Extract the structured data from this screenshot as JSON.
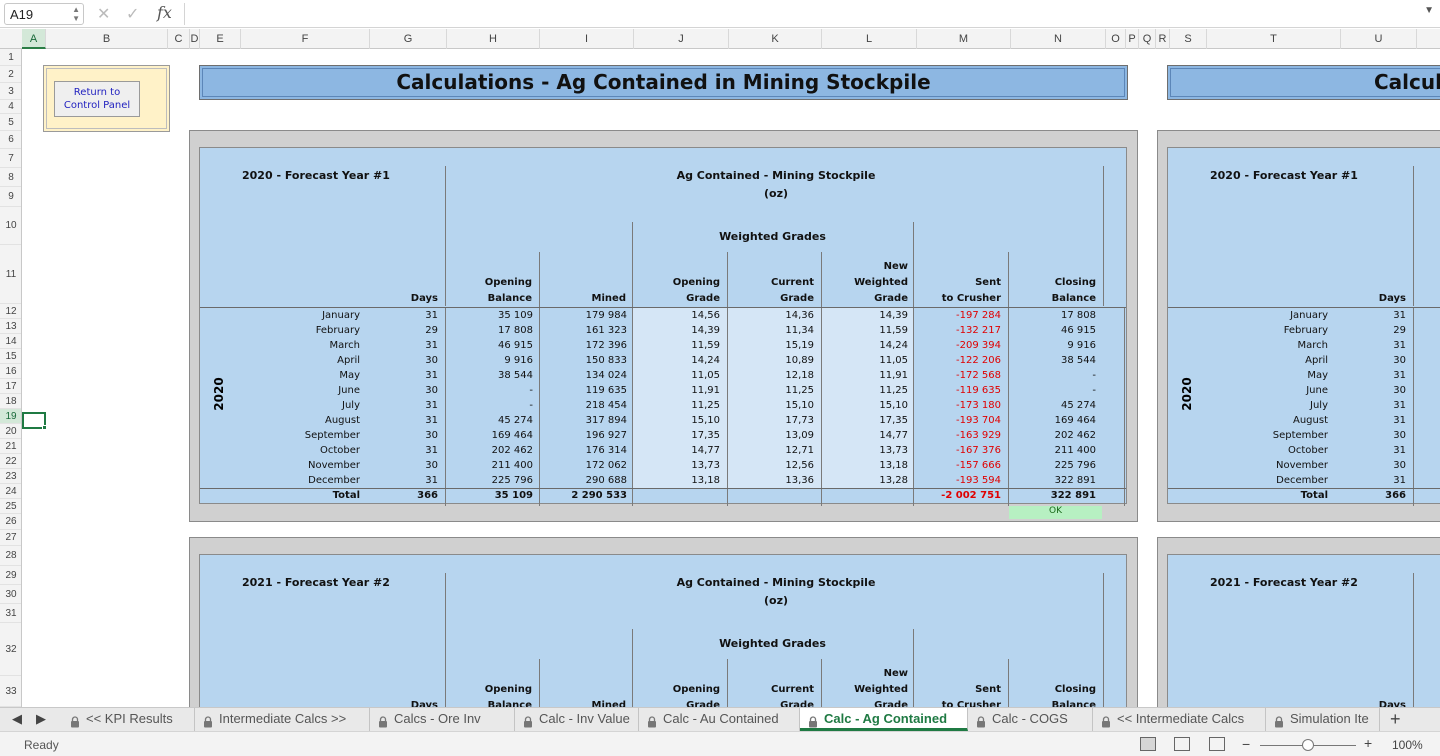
{
  "formula_bar": {
    "name_box": "A19",
    "fx": "fx",
    "formula": ""
  },
  "columns": [
    "A",
    "B",
    "C",
    "D",
    "E",
    "F",
    "G",
    "H",
    "I",
    "J",
    "K",
    "L",
    "M",
    "N",
    "O",
    "P",
    "Q",
    "R",
    "S",
    "T",
    "U"
  ],
  "selected_column": "A",
  "rows": [
    "1",
    "2",
    "3",
    "4",
    "5",
    "6",
    "7",
    "8",
    "9",
    "10",
    "11",
    "12",
    "13",
    "14",
    "15",
    "16",
    "17",
    "18",
    "19",
    "20",
    "21",
    "22",
    "23",
    "24",
    "25",
    "26",
    "27",
    "28",
    "29",
    "30",
    "31",
    "32",
    "33"
  ],
  "selected_row": "19",
  "control_button": "Return to Control Panel",
  "title": "Calculations - Ag Contained  in Mining Stockpile",
  "title_right": "Calcula",
  "table2020": {
    "year_heading": "2020 - Forecast Year #1",
    "group_title": "Ag Contained - Mining Stockpile",
    "group_unit": "(oz)",
    "weighted_grades": "Weighted Grades",
    "year_label": "2020",
    "headers": {
      "days": "Days",
      "opening_balance_1": "Opening",
      "opening_balance_2": "Balance",
      "mined": "Mined",
      "opening_grade_1": "Opening",
      "opening_grade_2": "Grade",
      "current_grade_1": "Current",
      "current_grade_2": "Grade",
      "new_grade_1": "New",
      "new_grade_2": "Weighted",
      "new_grade_3": "Grade",
      "sent_1": "Sent",
      "sent_2": "to Crusher",
      "closing_1": "Closing",
      "closing_2": "Balance"
    },
    "rows": [
      {
        "month": "January",
        "days": "31",
        "opening": "35 109",
        "mined": "179 984",
        "og": "14,56",
        "cg": "14,36",
        "ng": "14,39",
        "sent": "-197 284",
        "closing": "17 808"
      },
      {
        "month": "February",
        "days": "29",
        "opening": "17 808",
        "mined": "161 323",
        "og": "14,39",
        "cg": "11,34",
        "ng": "11,59",
        "sent": "-132 217",
        "closing": "46 915"
      },
      {
        "month": "March",
        "days": "31",
        "opening": "46 915",
        "mined": "172 396",
        "og": "11,59",
        "cg": "15,19",
        "ng": "14,24",
        "sent": "-209 394",
        "closing": "9 916"
      },
      {
        "month": "April",
        "days": "30",
        "opening": "9 916",
        "mined": "150 833",
        "og": "14,24",
        "cg": "10,89",
        "ng": "11,05",
        "sent": "-122 206",
        "closing": "38 544"
      },
      {
        "month": "May",
        "days": "31",
        "opening": "38 544",
        "mined": "134 024",
        "og": "11,05",
        "cg": "12,18",
        "ng": "11,91",
        "sent": "-172 568",
        "closing": "-"
      },
      {
        "month": "June",
        "days": "30",
        "opening": "-",
        "mined": "119 635",
        "og": "11,91",
        "cg": "11,25",
        "ng": "11,25",
        "sent": "-119 635",
        "closing": "-"
      },
      {
        "month": "July",
        "days": "31",
        "opening": "-",
        "mined": "218 454",
        "og": "11,25",
        "cg": "15,10",
        "ng": "15,10",
        "sent": "-173 180",
        "closing": "45 274"
      },
      {
        "month": "August",
        "days": "31",
        "opening": "45 274",
        "mined": "317 894",
        "og": "15,10",
        "cg": "17,73",
        "ng": "17,35",
        "sent": "-193 704",
        "closing": "169 464"
      },
      {
        "month": "September",
        "days": "30",
        "opening": "169 464",
        "mined": "196 927",
        "og": "17,35",
        "cg": "13,09",
        "ng": "14,77",
        "sent": "-163 929",
        "closing": "202 462"
      },
      {
        "month": "October",
        "days": "31",
        "opening": "202 462",
        "mined": "176 314",
        "og": "14,77",
        "cg": "12,71",
        "ng": "13,73",
        "sent": "-167 376",
        "closing": "211 400"
      },
      {
        "month": "November",
        "days": "30",
        "opening": "211 400",
        "mined": "172 062",
        "og": "13,73",
        "cg": "12,56",
        "ng": "13,18",
        "sent": "-157 666",
        "closing": "225 796"
      },
      {
        "month": "December",
        "days": "31",
        "opening": "225 796",
        "mined": "290 688",
        "og": "13,18",
        "cg": "13,36",
        "ng": "13,28",
        "sent": "-193 594",
        "closing": "322 891"
      }
    ],
    "total": {
      "label": "Total",
      "days": "366",
      "opening": "35 109",
      "mined": "2 290 533",
      "sent": "-2 002 751",
      "closing": "322 891"
    },
    "check": "OK"
  },
  "table2021": {
    "year_heading": "2021 - Forecast Year #2",
    "group_title": "Ag Contained - Mining Stockpile",
    "group_unit": "(oz)",
    "weighted_grades": "Weighted Grades",
    "headers": {
      "days": "Days",
      "opening_balance_1": "Opening",
      "opening_balance_2": "Balance",
      "mined": "Mined",
      "opening_grade_1": "Opening",
      "opening_grade_2": "Grade",
      "current_grade_1": "Current",
      "current_grade_2": "Grade",
      "new_grade_1": "New",
      "new_grade_2": "Weighted",
      "new_grade_3": "Grade",
      "sent_1": "Sent",
      "sent_2": "to Crusher",
      "closing_1": "Closing",
      "closing_2": "Balance"
    }
  },
  "right_panel": {
    "year_heading_1": "2020 - Forecast Year #1",
    "year_heading_2": "2021 - Forecast Year #2",
    "year_label": "2020",
    "days_header": "Days",
    "total_label": "Total",
    "total_days": "366"
  },
  "tabs": [
    {
      "label": "<< KPI Results",
      "active": false
    },
    {
      "label": "Intermediate Calcs >>",
      "active": false
    },
    {
      "label": "Calcs - Ore Inv",
      "active": false
    },
    {
      "label": "Calc - Inv Value",
      "active": false
    },
    {
      "label": "Calc - Au Contained",
      "active": false
    },
    {
      "label": "Calc - Ag Contained",
      "active": true
    },
    {
      "label": "Calc - COGS",
      "active": false
    },
    {
      "label": "<< Intermediate Calcs",
      "active": false
    },
    {
      "label": "Simulation Ite",
      "active": false
    }
  ],
  "status": {
    "text": "Ready",
    "zoom": "100%"
  },
  "colors": {
    "accent": "#1f7a43",
    "header_blue": "#8db7e2",
    "panel_blue": "#b7d5ef",
    "negative": "#e00000"
  }
}
